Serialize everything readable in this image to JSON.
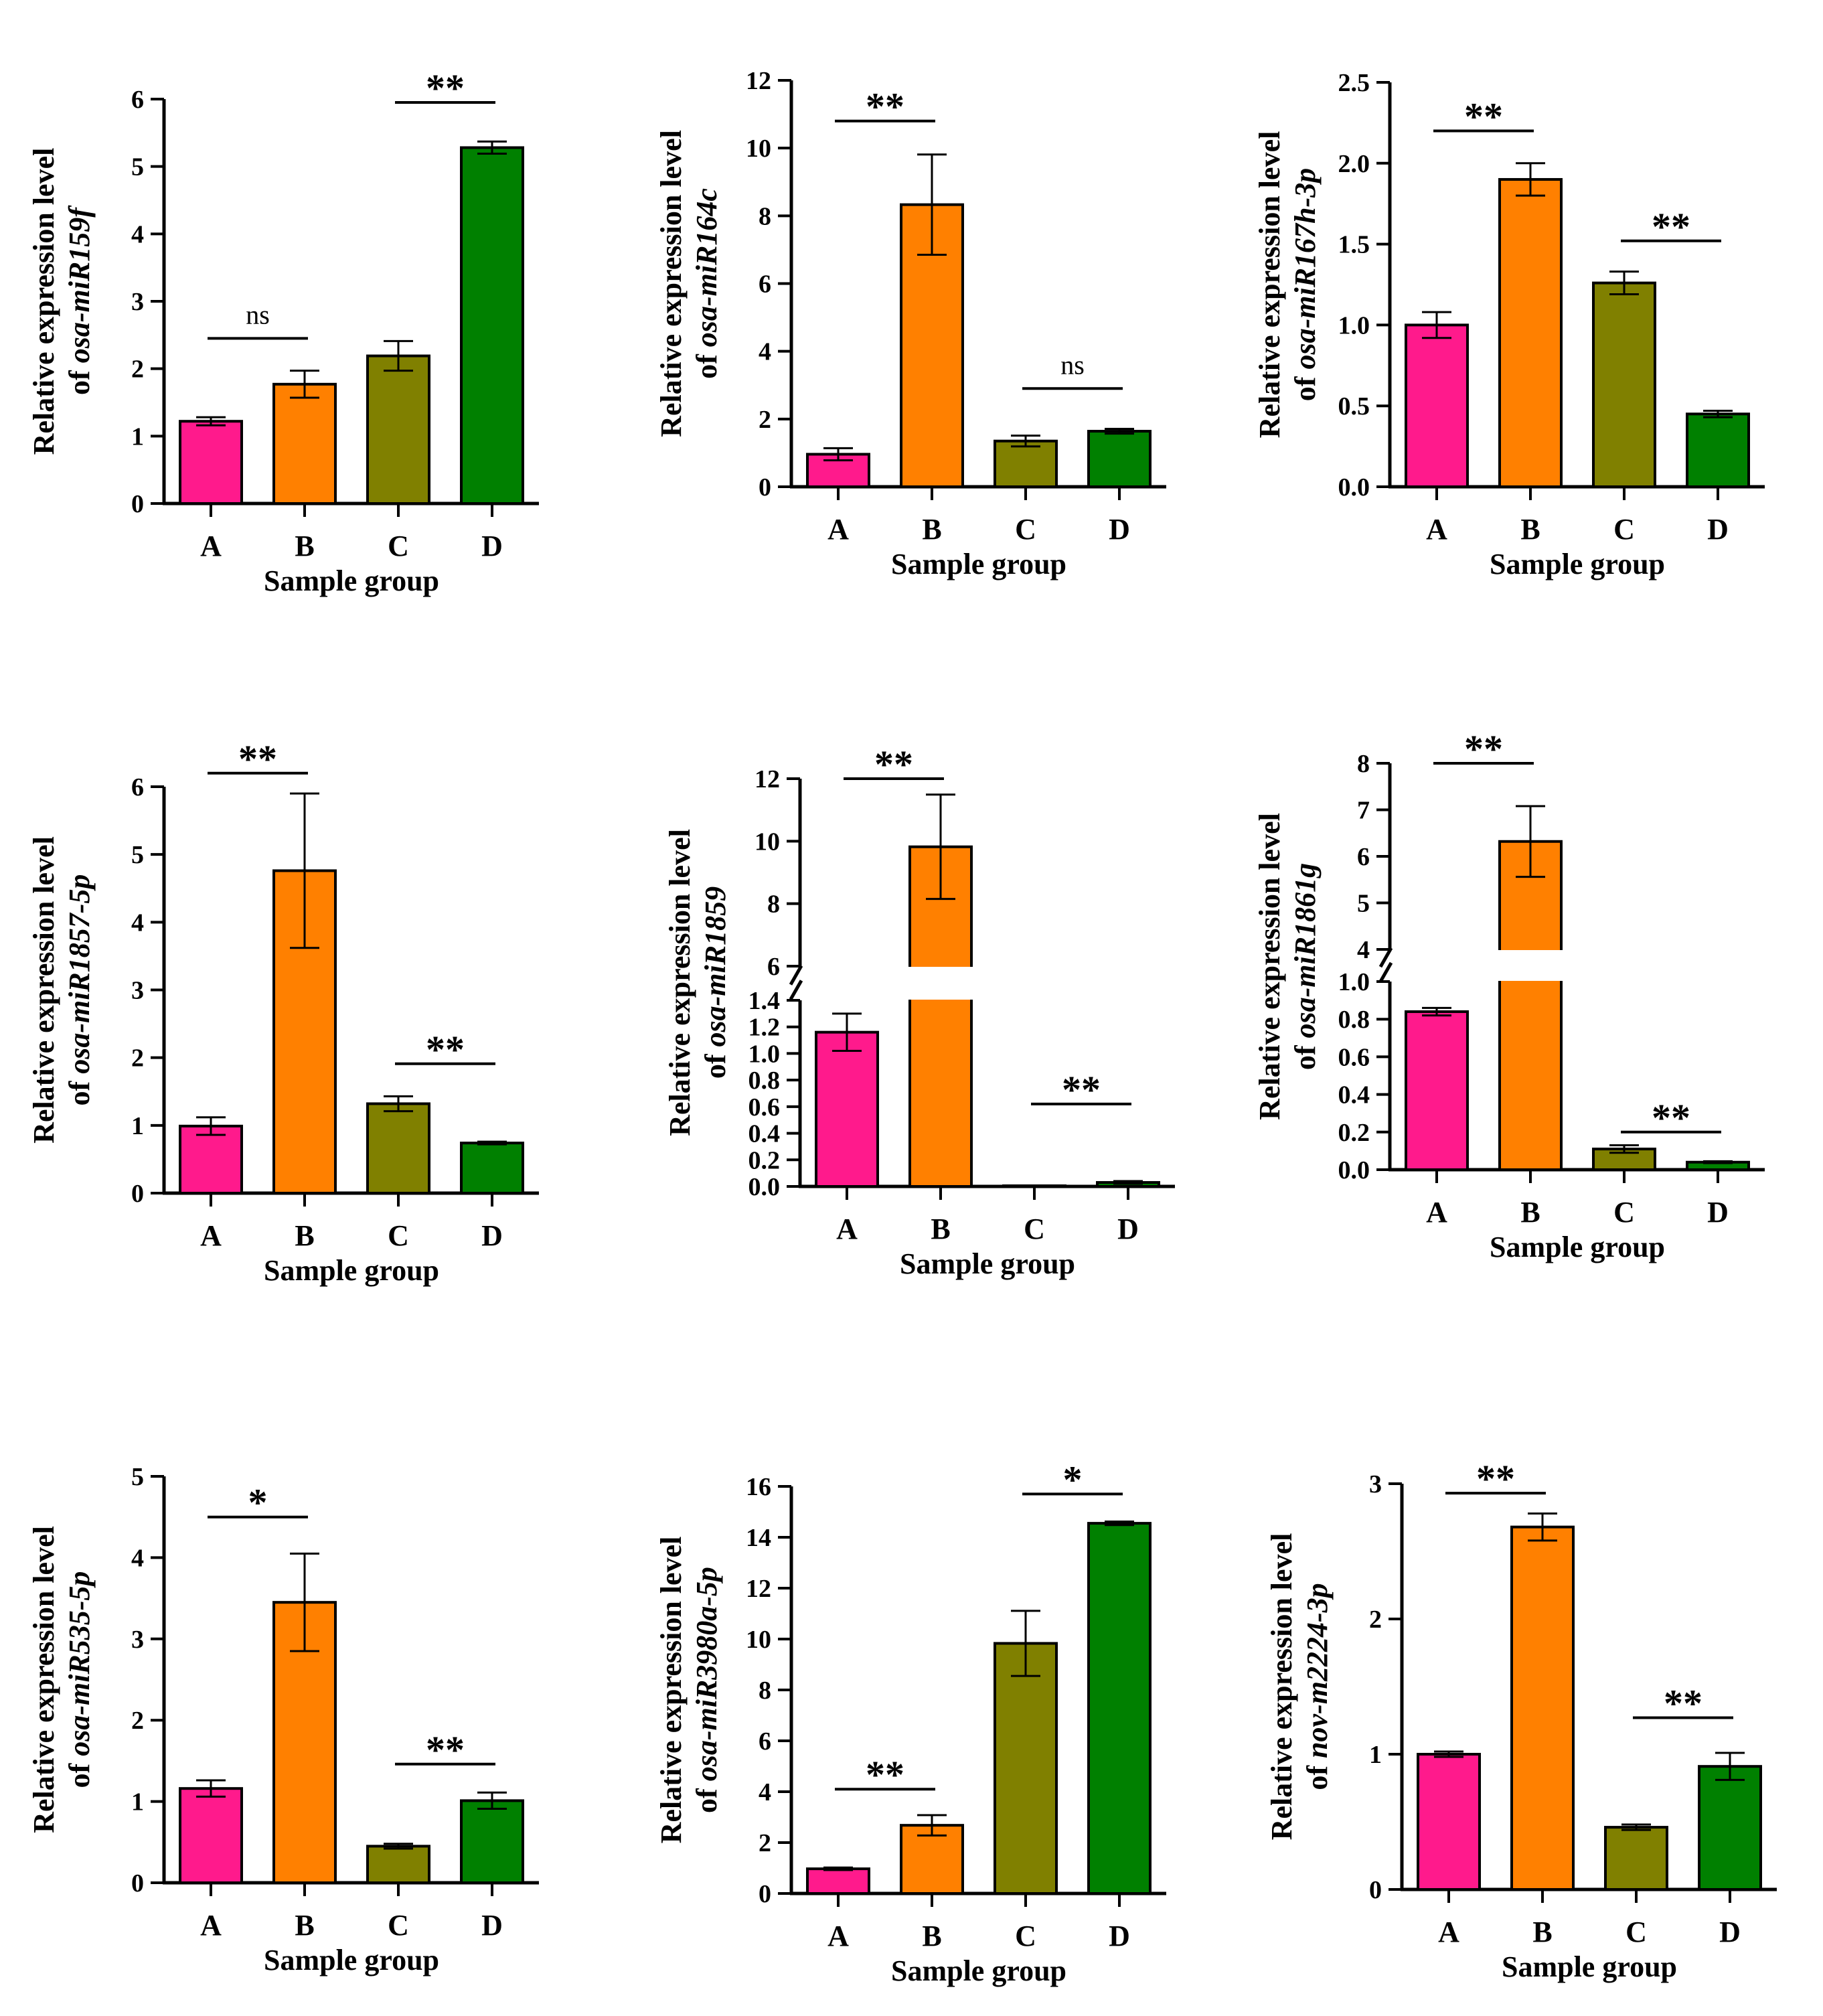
{
  "colors": {
    "A": "#FF1A8C",
    "B": "#FF8000",
    "C": "#808000",
    "D": "#008000",
    "axis": "#000000"
  },
  "chart_data": [
    {
      "type": "bar",
      "gene": "osa-miR159f",
      "ylabel_line1": "Relative expression level",
      "ylabel_prefix": "of ",
      "xlabel": "Sample group",
      "categories": [
        "A",
        "B",
        "C",
        "D"
      ],
      "values": [
        1.22,
        1.77,
        2.19,
        5.28
      ],
      "errors": [
        0.06,
        0.2,
        0.22,
        0.09
      ],
      "ylim": [
        0,
        6
      ],
      "yticks": [
        {
          "v": 0,
          "label": "0"
        },
        {
          "v": 1,
          "label": "1"
        },
        {
          "v": 2,
          "label": "2"
        },
        {
          "v": 3,
          "label": "3"
        },
        {
          "v": 4,
          "label": "4"
        },
        {
          "v": 5,
          "label": "5"
        },
        {
          "v": 6,
          "label": "6"
        }
      ],
      "significance": [
        {
          "from": 0,
          "to": 1,
          "level": 2.45,
          "label": "ns"
        },
        {
          "from": 2,
          "to": 3,
          "level": 5.95,
          "label": "**"
        }
      ]
    },
    {
      "type": "bar",
      "gene": "osa-miR164c",
      "ylabel_line1": "Relative expression level",
      "ylabel_prefix": "of ",
      "xlabel": "Sample group",
      "categories": [
        "A",
        "B",
        "C",
        "D"
      ],
      "values": [
        0.96,
        8.33,
        1.35,
        1.64
      ],
      "errors": [
        0.18,
        1.48,
        0.16,
        0.07
      ],
      "ylim": [
        0,
        12
      ],
      "yticks": [
        {
          "v": 0,
          "label": "0"
        },
        {
          "v": 2,
          "label": "2"
        },
        {
          "v": 4,
          "label": "4"
        },
        {
          "v": 6,
          "label": "6"
        },
        {
          "v": 8,
          "label": "8"
        },
        {
          "v": 10,
          "label": "10"
        },
        {
          "v": 12,
          "label": "12"
        }
      ],
      "significance": [
        {
          "from": 0,
          "to": 1,
          "level": 10.8,
          "label": "**"
        },
        {
          "from": 2,
          "to": 3,
          "level": 2.9,
          "label": "ns"
        }
      ]
    },
    {
      "type": "bar",
      "gene": "osa-miR167h-3p",
      "ylabel_line1": "Relative expression level",
      "ylabel_prefix": "of ",
      "xlabel": "Sample group",
      "categories": [
        "A",
        "B",
        "C",
        "D"
      ],
      "values": [
        1.0,
        1.9,
        1.26,
        0.45
      ],
      "errors": [
        0.08,
        0.1,
        0.07,
        0.02
      ],
      "ylim": [
        0,
        2.5
      ],
      "yticks": [
        {
          "v": 0,
          "label": "0.0"
        },
        {
          "v": 0.5,
          "label": "0.5"
        },
        {
          "v": 1,
          "label": "1.0"
        },
        {
          "v": 1.5,
          "label": "1.5"
        },
        {
          "v": 2,
          "label": "2.0"
        },
        {
          "v": 2.5,
          "label": "2.5"
        }
      ],
      "significance": [
        {
          "from": 0,
          "to": 1,
          "level": 2.2,
          "label": "**"
        },
        {
          "from": 2,
          "to": 3,
          "level": 1.52,
          "label": "**"
        }
      ]
    },
    {
      "type": "bar",
      "gene": "osa-miR1857-5p",
      "ylabel_line1": "Relative expression level",
      "ylabel_prefix": "of ",
      "xlabel": "Sample group",
      "categories": [
        "A",
        "B",
        "C",
        "D"
      ],
      "values": [
        0.99,
        4.76,
        1.32,
        0.74
      ],
      "errors": [
        0.13,
        1.14,
        0.11,
        0.02
      ],
      "ylim": [
        0,
        6
      ],
      "yticks": [
        {
          "v": 0,
          "label": "0"
        },
        {
          "v": 1,
          "label": "1"
        },
        {
          "v": 2,
          "label": "2"
        },
        {
          "v": 3,
          "label": "3"
        },
        {
          "v": 4,
          "label": "4"
        },
        {
          "v": 5,
          "label": "5"
        },
        {
          "v": 6,
          "label": "6"
        }
      ],
      "significance": [
        {
          "from": 0,
          "to": 1,
          "level": 6.2,
          "label": "**"
        },
        {
          "from": 2,
          "to": 3,
          "level": 1.91,
          "label": "**"
        }
      ]
    },
    {
      "type": "bar",
      "gene": "osa-miR1859",
      "ylabel_line1": "Relative expression level",
      "ylabel_prefix": "of ",
      "xlabel": "Sample group",
      "categories": [
        "A",
        "B",
        "C",
        "D"
      ],
      "values": [
        1.16,
        9.82,
        0.005,
        0.03
      ],
      "errors": [
        0.14,
        1.67,
        0.0,
        0.01
      ],
      "axis_break": {
        "low": [
          0,
          1.4
        ],
        "high": [
          6,
          12
        ]
      },
      "yticks_low": [
        {
          "v": 0,
          "label": "0.0"
        },
        {
          "v": 0.2,
          "label": "0.2"
        },
        {
          "v": 0.4,
          "label": "0.4"
        },
        {
          "v": 0.6,
          "label": "0.6"
        },
        {
          "v": 0.8,
          "label": "0.8"
        },
        {
          "v": 1.0,
          "label": "1.0"
        },
        {
          "v": 1.2,
          "label": "1.2"
        },
        {
          "v": 1.4,
          "label": "1.4"
        }
      ],
      "yticks_high": [
        {
          "v": 6,
          "label": "6"
        },
        {
          "v": 8,
          "label": "8"
        },
        {
          "v": 10,
          "label": "10"
        },
        {
          "v": 12,
          "label": "12"
        }
      ],
      "significance": [
        {
          "from": 0,
          "to": 1,
          "level": 12.0,
          "segment": "high",
          "label": "**"
        },
        {
          "from": 2,
          "to": 3,
          "level": 0.62,
          "segment": "low",
          "label": "**"
        }
      ]
    },
    {
      "type": "bar",
      "gene": "osa-miR1861g",
      "ylabel_line1": "Relative expression level",
      "ylabel_prefix": "of ",
      "xlabel": "Sample group",
      "categories": [
        "A",
        "B",
        "C",
        "D"
      ],
      "values": [
        0.84,
        6.32,
        0.11,
        0.04
      ],
      "errors": [
        0.02,
        0.76,
        0.02,
        0.005
      ],
      "axis_break": {
        "low": [
          0,
          1.0
        ],
        "high": [
          4,
          8
        ]
      },
      "yticks_low": [
        {
          "v": 0,
          "label": "0.0"
        },
        {
          "v": 0.2,
          "label": "0.2"
        },
        {
          "v": 0.4,
          "label": "0.4"
        },
        {
          "v": 0.6,
          "label": "0.6"
        },
        {
          "v": 0.8,
          "label": "0.8"
        },
        {
          "v": 1.0,
          "label": "1.0"
        }
      ],
      "yticks_high": [
        {
          "v": 4,
          "label": "4"
        },
        {
          "v": 5,
          "label": "5"
        },
        {
          "v": 6,
          "label": "6"
        },
        {
          "v": 7,
          "label": "7"
        },
        {
          "v": 8,
          "label": "8"
        }
      ],
      "significance": [
        {
          "from": 0,
          "to": 1,
          "level": 8.0,
          "segment": "high",
          "label": "**"
        },
        {
          "from": 2,
          "to": 3,
          "level": 0.2,
          "segment": "low",
          "label": "**"
        }
      ]
    },
    {
      "type": "bar",
      "gene": "osa-miR535-5p",
      "ylabel_line1": "Relative expression level",
      "ylabel_prefix": "of ",
      "xlabel": "Sample group",
      "categories": [
        "A",
        "B",
        "C",
        "D"
      ],
      "values": [
        1.16,
        3.45,
        0.45,
        1.01
      ],
      "errors": [
        0.1,
        0.6,
        0.03,
        0.1
      ],
      "ylim": [
        0,
        5
      ],
      "yticks": [
        {
          "v": 0,
          "label": "0"
        },
        {
          "v": 1,
          "label": "1"
        },
        {
          "v": 2,
          "label": "2"
        },
        {
          "v": 3,
          "label": "3"
        },
        {
          "v": 4,
          "label": "4"
        },
        {
          "v": 5,
          "label": "5"
        }
      ],
      "significance": [
        {
          "from": 0,
          "to": 1,
          "level": 4.5,
          "label": "*"
        },
        {
          "from": 2,
          "to": 3,
          "level": 1.46,
          "label": "**"
        }
      ]
    },
    {
      "type": "bar",
      "gene": "osa-miR3980a-5p",
      "ylabel_line1": "Relative expression level",
      "ylabel_prefix": "of ",
      "xlabel": "Sample group",
      "categories": [
        "A",
        "B",
        "C",
        "D"
      ],
      "values": [
        0.97,
        2.68,
        9.83,
        14.55
      ],
      "errors": [
        0.05,
        0.4,
        1.28,
        0.07
      ],
      "ylim": [
        0,
        16
      ],
      "yticks": [
        {
          "v": 0,
          "label": "0"
        },
        {
          "v": 2,
          "label": "2"
        },
        {
          "v": 4,
          "label": "4"
        },
        {
          "v": 6,
          "label": "6"
        },
        {
          "v": 8,
          "label": "8"
        },
        {
          "v": 10,
          "label": "10"
        },
        {
          "v": 12,
          "label": "12"
        },
        {
          "v": 14,
          "label": "14"
        },
        {
          "v": 16,
          "label": "16"
        }
      ],
      "significance": [
        {
          "from": 0,
          "to": 1,
          "level": 4.1,
          "label": "**"
        },
        {
          "from": 2,
          "to": 3,
          "level": 15.7,
          "label": "*"
        }
      ]
    },
    {
      "type": "bar",
      "gene": "nov-m2224-3p",
      "ylabel_line1": "Relative expression level",
      "ylabel_prefix": "of ",
      "xlabel": "Sample group",
      "categories": [
        "A",
        "B",
        "C",
        "D"
      ],
      "values": [
        1.0,
        2.68,
        0.46,
        0.91
      ],
      "errors": [
        0.02,
        0.1,
        0.02,
        0.1
      ],
      "ylim": [
        0,
        3
      ],
      "yticks": [
        {
          "v": 0,
          "label": "0"
        },
        {
          "v": 1,
          "label": "1"
        },
        {
          "v": 2,
          "label": "2"
        },
        {
          "v": 3,
          "label": "3"
        }
      ],
      "significance": [
        {
          "from": 0,
          "to": 1,
          "level": 2.93,
          "label": "**"
        },
        {
          "from": 2,
          "to": 3,
          "level": 1.27,
          "label": "**"
        }
      ]
    }
  ]
}
